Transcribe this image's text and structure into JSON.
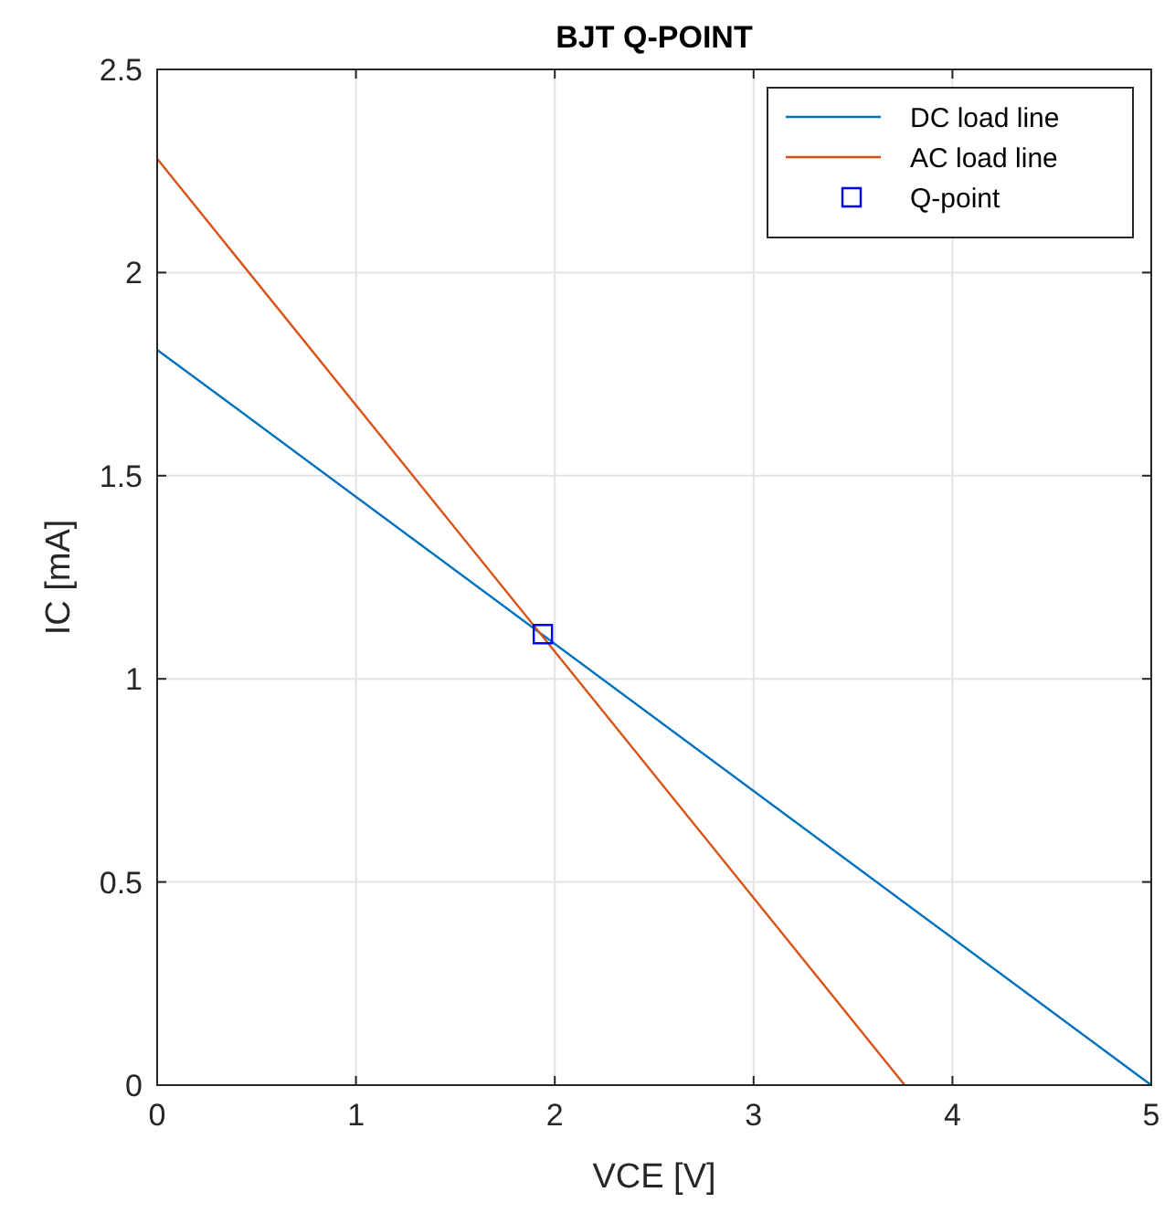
{
  "chart_data": {
    "type": "line",
    "title": "BJT Q-POINT",
    "xlabel": "VCE [V]",
    "ylabel": "IC [mA]",
    "xlim": [
      0,
      5
    ],
    "xticks": [
      0,
      1,
      2,
      3,
      4,
      5
    ],
    "ylim": [
      0,
      2.5
    ],
    "yticks": [
      0,
      0.5,
      1,
      1.5,
      2,
      2.5
    ],
    "grid": true,
    "legend": "top right",
    "series": [
      {
        "name": "DC load line",
        "color": "#0072bd",
        "x": [
          0,
          5
        ],
        "values": [
          1.81,
          0
        ],
        "marker": "none",
        "line_style": "solid"
      },
      {
        "name": "AC load line",
        "color": "#d95319",
        "x": [
          0,
          3.76
        ],
        "values": [
          2.28,
          0
        ],
        "marker": "none",
        "line_style": "solid"
      },
      {
        "name": "Q-point",
        "type": "scatter",
        "color": "#0000ff",
        "x": [
          1.94
        ],
        "values": [
          1.11
        ],
        "marker": "square"
      }
    ]
  }
}
